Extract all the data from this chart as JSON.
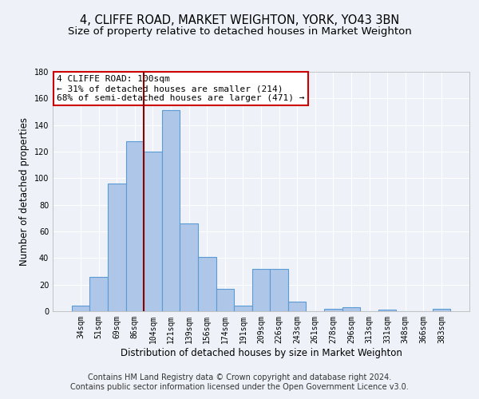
{
  "title1": "4, CLIFFE ROAD, MARKET WEIGHTON, YORK, YO43 3BN",
  "title2": "Size of property relative to detached houses in Market Weighton",
  "xlabel": "Distribution of detached houses by size in Market Weighton",
  "ylabel": "Number of detached properties",
  "categories": [
    "34sqm",
    "51sqm",
    "69sqm",
    "86sqm",
    "104sqm",
    "121sqm",
    "139sqm",
    "156sqm",
    "174sqm",
    "191sqm",
    "209sqm",
    "226sqm",
    "243sqm",
    "261sqm",
    "278sqm",
    "296sqm",
    "313sqm",
    "331sqm",
    "348sqm",
    "366sqm",
    "383sqm"
  ],
  "values": [
    4,
    26,
    96,
    128,
    120,
    151,
    66,
    41,
    17,
    4,
    32,
    32,
    7,
    0,
    2,
    3,
    0,
    1,
    0,
    0,
    2
  ],
  "bar_color": "#aec6e8",
  "bar_edge_color": "#5b9bd5",
  "vline_x_index": 4,
  "vline_color": "#8b0000",
  "annotation_text": "4 CLIFFE ROAD: 100sqm\n← 31% of detached houses are smaller (214)\n68% of semi-detached houses are larger (471) →",
  "annotation_box_color": "#ffffff",
  "annotation_box_edge": "#cc0000",
  "ylim": [
    0,
    180
  ],
  "yticks": [
    0,
    20,
    40,
    60,
    80,
    100,
    120,
    140,
    160,
    180
  ],
  "footer1": "Contains HM Land Registry data © Crown copyright and database right 2024.",
  "footer2": "Contains public sector information licensed under the Open Government Licence v3.0.",
  "background_color": "#eef2f8",
  "grid_color": "#ffffff",
  "title1_fontsize": 10.5,
  "title2_fontsize": 9.5,
  "tick_fontsize": 7,
  "ylabel_fontsize": 8.5,
  "xlabel_fontsize": 8.5,
  "footer_fontsize": 7,
  "annotation_fontsize": 8
}
